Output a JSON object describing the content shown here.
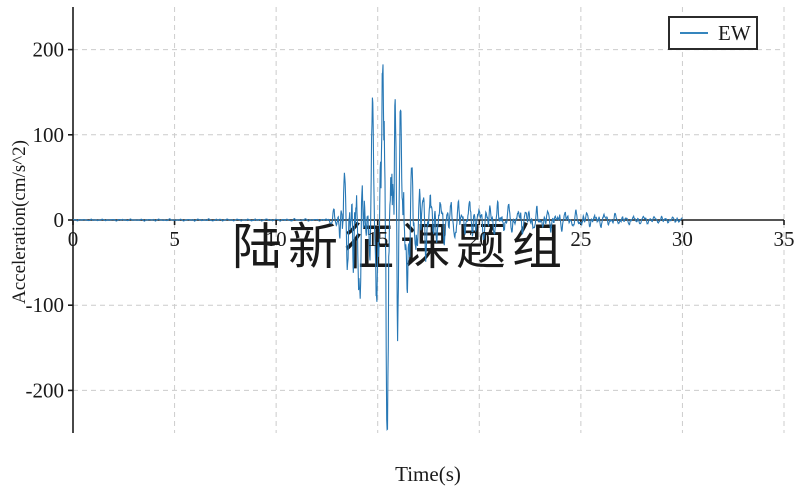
{
  "watermark": {
    "text": "陆新征课题组",
    "color": "#d7d7d7"
  },
  "axes_style": {
    "spine_color": "#1a1a1a",
    "grid_color": "#cccccc",
    "text_color": "#1a1a1a"
  },
  "chart_data": {
    "type": "line",
    "title": "",
    "xlabel": "Time(s)",
    "ylabel": "Acceleration(cm/s^2)",
    "xlim": [
      0,
      35
    ],
    "ylim": [
      -250,
      250
    ],
    "xticks": [
      0,
      5,
      10,
      15,
      20,
      25,
      30,
      35
    ],
    "yticks": [
      -200,
      -100,
      0,
      100,
      200
    ],
    "grid": {
      "on": true,
      "style": "dashed"
    },
    "legend": {
      "position": "upper right",
      "label": "EW"
    },
    "series": [
      {
        "name": "EW",
        "color": "#2878b5",
        "legend_line_color": "#3585bd",
        "duration_s": 30,
        "peak_acceleration": {
          "max": 172,
          "max_t": 15.2,
          "min": -185,
          "min_t": 15.5
        },
        "waveform": {
          "sample_dt_s": 0.02,
          "envelope": [
            [
              0,
              1
            ],
            [
              12.4,
              1.5
            ],
            [
              12.8,
              10
            ],
            [
              13.1,
              38
            ],
            [
              13.5,
              62
            ],
            [
              14.0,
              68
            ],
            [
              14.5,
              80
            ],
            [
              15.0,
              120
            ],
            [
              15.45,
              185
            ],
            [
              15.8,
              150
            ],
            [
              16.1,
              118
            ],
            [
              16.5,
              85
            ],
            [
              17.0,
              55
            ],
            [
              17.7,
              38
            ],
            [
              18.5,
              30
            ],
            [
              19.5,
              25
            ],
            [
              21,
              20
            ],
            [
              23,
              14
            ],
            [
              25,
              10
            ],
            [
              27,
              7
            ],
            [
              28.5,
              5
            ],
            [
              30,
              4
            ]
          ],
          "key_peaks": [
            [
              13.35,
              56
            ],
            [
              13.8,
              -62
            ],
            [
              14.15,
              -76
            ],
            [
              14.7,
              97
            ],
            [
              14.95,
              -98
            ],
            [
              15.22,
              172
            ],
            [
              15.5,
              -185
            ],
            [
              15.85,
              148
            ],
            [
              16.1,
              127
            ],
            [
              16.45,
              -90
            ]
          ],
          "frequencies_hz": [
            2.1,
            3.6,
            5.2,
            7.8
          ],
          "weights": [
            0.5,
            0.38,
            0.3,
            0.18
          ],
          "noise_weight": 0.45,
          "normalize": 1.25,
          "seed": 42
        }
      }
    ]
  }
}
